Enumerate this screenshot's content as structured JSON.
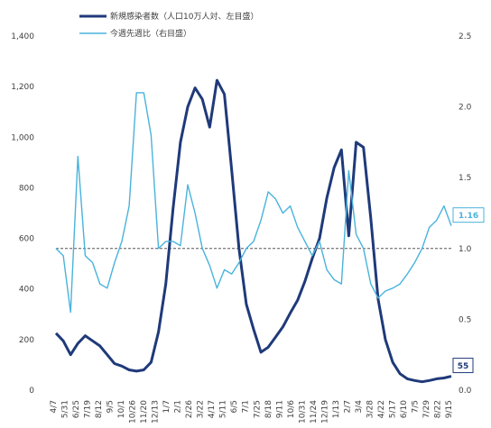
{
  "chart_data": {
    "type": "line",
    "legend": [
      {
        "label": "新規感染者数（人口10万人対、左目盛）",
        "color": "#1f3a7a"
      },
      {
        "label": "今週先週比（右目盛）",
        "color": "#49b3dc"
      }
    ],
    "x_tick_labels": [
      "4/7",
      "5/31",
      "6/25",
      "7/19",
      "8/12",
      "9/5",
      "10/1",
      "10/26",
      "11/20",
      "12/13",
      "1/7",
      "2/1",
      "2/26",
      "3/22",
      "4/17",
      "5/11",
      "6/5",
      "7/1",
      "7/25",
      "8/18",
      "9/11",
      "10/6",
      "10/31",
      "11/24",
      "12/19",
      "1/13",
      "2/7",
      "3/4",
      "3/28",
      "4/22",
      "5/17",
      "6/10",
      "7/5",
      "7/29",
      "8/22",
      "9/15"
    ],
    "left_axis": {
      "min": 0,
      "max": 1400,
      "ticks": [
        "0",
        "200",
        "400",
        "600",
        "800",
        "1,000",
        "1,200",
        "1,400"
      ]
    },
    "right_axis": {
      "min": 0.0,
      "max": 2.5,
      "ticks": [
        "0.0",
        "0.5",
        "1.0",
        "1.5",
        "2.0",
        "2.5"
      ]
    },
    "reference_line": 1.0,
    "series": [
      {
        "name": "新規感染者数（人口10万人対、左目盛）",
        "axis": "left",
        "values": [
          225,
          195,
          140,
          185,
          215,
          195,
          175,
          140,
          105,
          95,
          80,
          75,
          80,
          110,
          230,
          420,
          720,
          980,
          1120,
          1195,
          1150,
          1040,
          1225,
          1170,
          870,
          560,
          340,
          240,
          150,
          170,
          210,
          250,
          305,
          355,
          430,
          520,
          600,
          760,
          880,
          950,
          610,
          980,
          960,
          680,
          360,
          200,
          110,
          65,
          45,
          38,
          33,
          38,
          45,
          48,
          55
        ]
      },
      {
        "name": "今週先週比（右目盛）",
        "axis": "right",
        "values": [
          1.0,
          0.95,
          0.55,
          1.65,
          0.95,
          0.9,
          0.75,
          0.72,
          0.9,
          1.05,
          1.3,
          2.1,
          2.1,
          1.8,
          1.0,
          1.05,
          1.05,
          1.02,
          1.45,
          1.25,
          1.0,
          0.88,
          0.72,
          0.85,
          0.82,
          0.9,
          1.0,
          1.05,
          1.2,
          1.4,
          1.35,
          1.25,
          1.3,
          1.15,
          1.05,
          0.95,
          1.05,
          0.85,
          0.78,
          0.75,
          1.55,
          1.1,
          1.0,
          0.75,
          0.65,
          0.7,
          0.72,
          0.75,
          0.82,
          0.9,
          1.0,
          1.15,
          1.2,
          1.3,
          1.16
        ]
      }
    ],
    "callouts": [
      {
        "text": "1.16",
        "series": 1,
        "color": "#49b3dc"
      },
      {
        "text": "55",
        "series": 0,
        "color": "#1f3a7a"
      }
    ]
  }
}
